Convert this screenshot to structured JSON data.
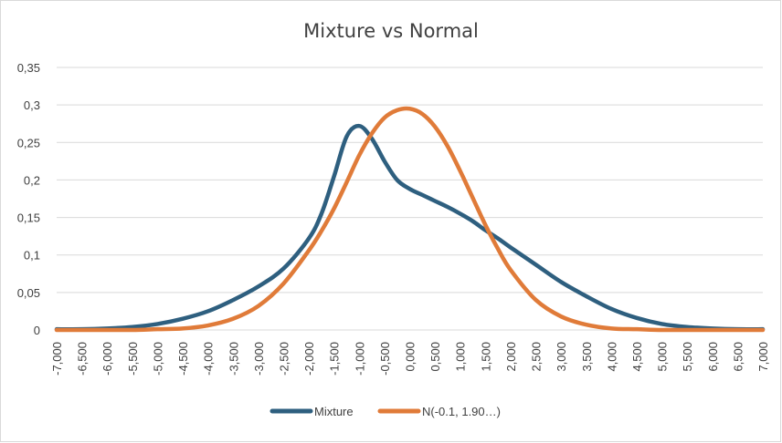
{
  "chart_data": {
    "type": "line",
    "title": "Mixture vs Normal",
    "xlabel": "",
    "ylabel": "",
    "xlim": [
      -7,
      7
    ],
    "ylim": [
      0,
      0.35
    ],
    "grid": true,
    "legend_position": "bottom",
    "y_ticks": [
      "0",
      "0,05",
      "0,1",
      "0,15",
      "0,2",
      "0,25",
      "0,3",
      "0,35"
    ],
    "x_ticks": [
      "-7,000",
      "-6,500",
      "-6,000",
      "-5,500",
      "-5,000",
      "-4,500",
      "-4,000",
      "-3,500",
      "-3,000",
      "-2,500",
      "-2,000",
      "-1,500",
      "-1,000",
      "-0,500",
      "0,000",
      "0,500",
      "1,000",
      "1,500",
      "2,000",
      "2,500",
      "3,000",
      "3,500",
      "4,000",
      "4,500",
      "5,000",
      "5,500",
      "6,000",
      "6,500",
      "7,000"
    ],
    "x": [
      -7.0,
      -6.5,
      -6.0,
      -5.5,
      -5.0,
      -4.5,
      -4.0,
      -3.5,
      -3.0,
      -2.5,
      -2.0,
      -1.75,
      -1.5,
      -1.25,
      -1.0,
      -0.75,
      -0.5,
      -0.25,
      0.0,
      0.25,
      0.5,
      0.75,
      1.0,
      1.25,
      1.5,
      1.75,
      2.0,
      2.5,
      3.0,
      3.5,
      4.0,
      4.5,
      5.0,
      5.5,
      6.0,
      6.5,
      7.0
    ],
    "series": [
      {
        "name": "Mixture",
        "color": "#2e5f7f",
        "values": [
          0.001,
          0.001,
          0.002,
          0.004,
          0.008,
          0.015,
          0.025,
          0.04,
          0.058,
          0.082,
          0.122,
          0.155,
          0.205,
          0.258,
          0.272,
          0.255,
          0.225,
          0.2,
          0.188,
          0.18,
          0.172,
          0.164,
          0.155,
          0.145,
          0.133,
          0.122,
          0.11,
          0.087,
          0.064,
          0.045,
          0.028,
          0.016,
          0.008,
          0.004,
          0.002,
          0.001,
          0.001
        ]
      },
      {
        "name": "N(-0.1, 1.90…)",
        "color": "#e07b39",
        "values": [
          0.0,
          0.0,
          0.0,
          0.0,
          0.001,
          0.002,
          0.006,
          0.015,
          0.032,
          0.062,
          0.106,
          0.132,
          0.162,
          0.197,
          0.233,
          0.262,
          0.283,
          0.293,
          0.295,
          0.288,
          0.271,
          0.245,
          0.212,
          0.176,
          0.14,
          0.108,
          0.08,
          0.04,
          0.018,
          0.007,
          0.002,
          0.001,
          0.0,
          0.0,
          0.0,
          0.0,
          0.0
        ]
      }
    ]
  }
}
